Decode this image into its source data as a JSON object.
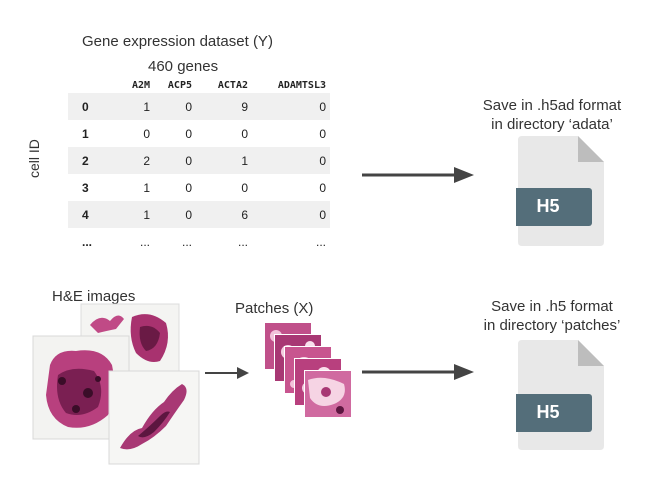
{
  "dataset": {
    "title": "Gene expression dataset (Y)",
    "genes_label": "460 genes",
    "row_axis_label": "cell ID",
    "columns": [
      "A2M",
      "ACP5",
      "ACTA2",
      "ADAMTSL3"
    ],
    "rows": [
      {
        "id": "0",
        "values": [
          "1",
          "0",
          "9",
          "0"
        ]
      },
      {
        "id": "1",
        "values": [
          "0",
          "0",
          "0",
          "0"
        ]
      },
      {
        "id": "2",
        "values": [
          "2",
          "0",
          "1",
          "0"
        ]
      },
      {
        "id": "3",
        "values": [
          "1",
          "0",
          "0",
          "0"
        ]
      },
      {
        "id": "4",
        "values": [
          "1",
          "0",
          "6",
          "0"
        ]
      },
      {
        "id": "...",
        "values": [
          "...",
          "...",
          "...",
          "..."
        ]
      }
    ]
  },
  "save_h5ad": {
    "line1": "Save in .h5ad format",
    "line2": "in directory ‘adata’",
    "file_label": "H5"
  },
  "he_images": {
    "label": "H&E images"
  },
  "patches": {
    "label": "Patches (X)"
  },
  "save_h5": {
    "line1": "Save in .h5 format",
    "line2": "in directory ‘patches’",
    "file_label": "H5"
  },
  "colors": {
    "arrow": "#444444",
    "file_body": "#e8e8e8",
    "file_fold": "#bdbdbd",
    "file_badge": "#546e7a",
    "tissue": "#b0306e"
  }
}
